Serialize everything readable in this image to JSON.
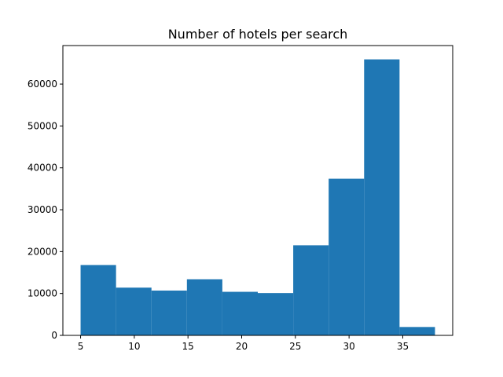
{
  "chart_data": {
    "type": "bar",
    "title": "Number of hotels per search",
    "xlabel": "",
    "ylabel": "",
    "bins": [
      {
        "start": 5.0,
        "end": 8.3,
        "count": 16800
      },
      {
        "start": 8.3,
        "end": 11.6,
        "count": 11400
      },
      {
        "start": 11.6,
        "end": 14.9,
        "count": 10700
      },
      {
        "start": 14.9,
        "end": 18.2,
        "count": 13400
      },
      {
        "start": 18.2,
        "end": 21.5,
        "count": 10400
      },
      {
        "start": 21.5,
        "end": 24.8,
        "count": 10100
      },
      {
        "start": 24.8,
        "end": 28.1,
        "count": 21500
      },
      {
        "start": 28.1,
        "end": 31.4,
        "count": 37400
      },
      {
        "start": 31.4,
        "end": 34.7,
        "count": 65900
      },
      {
        "start": 34.7,
        "end": 38.0,
        "count": 2000
      }
    ],
    "xlim": [
      3.35,
      39.65
    ],
    "ylim": [
      0,
      69200
    ],
    "xticks": [
      5,
      10,
      15,
      20,
      25,
      30,
      35
    ],
    "yticks": [
      0,
      10000,
      20000,
      30000,
      40000,
      50000,
      60000
    ],
    "bar_color": "#1f77b4",
    "grid": false,
    "legend": false
  }
}
